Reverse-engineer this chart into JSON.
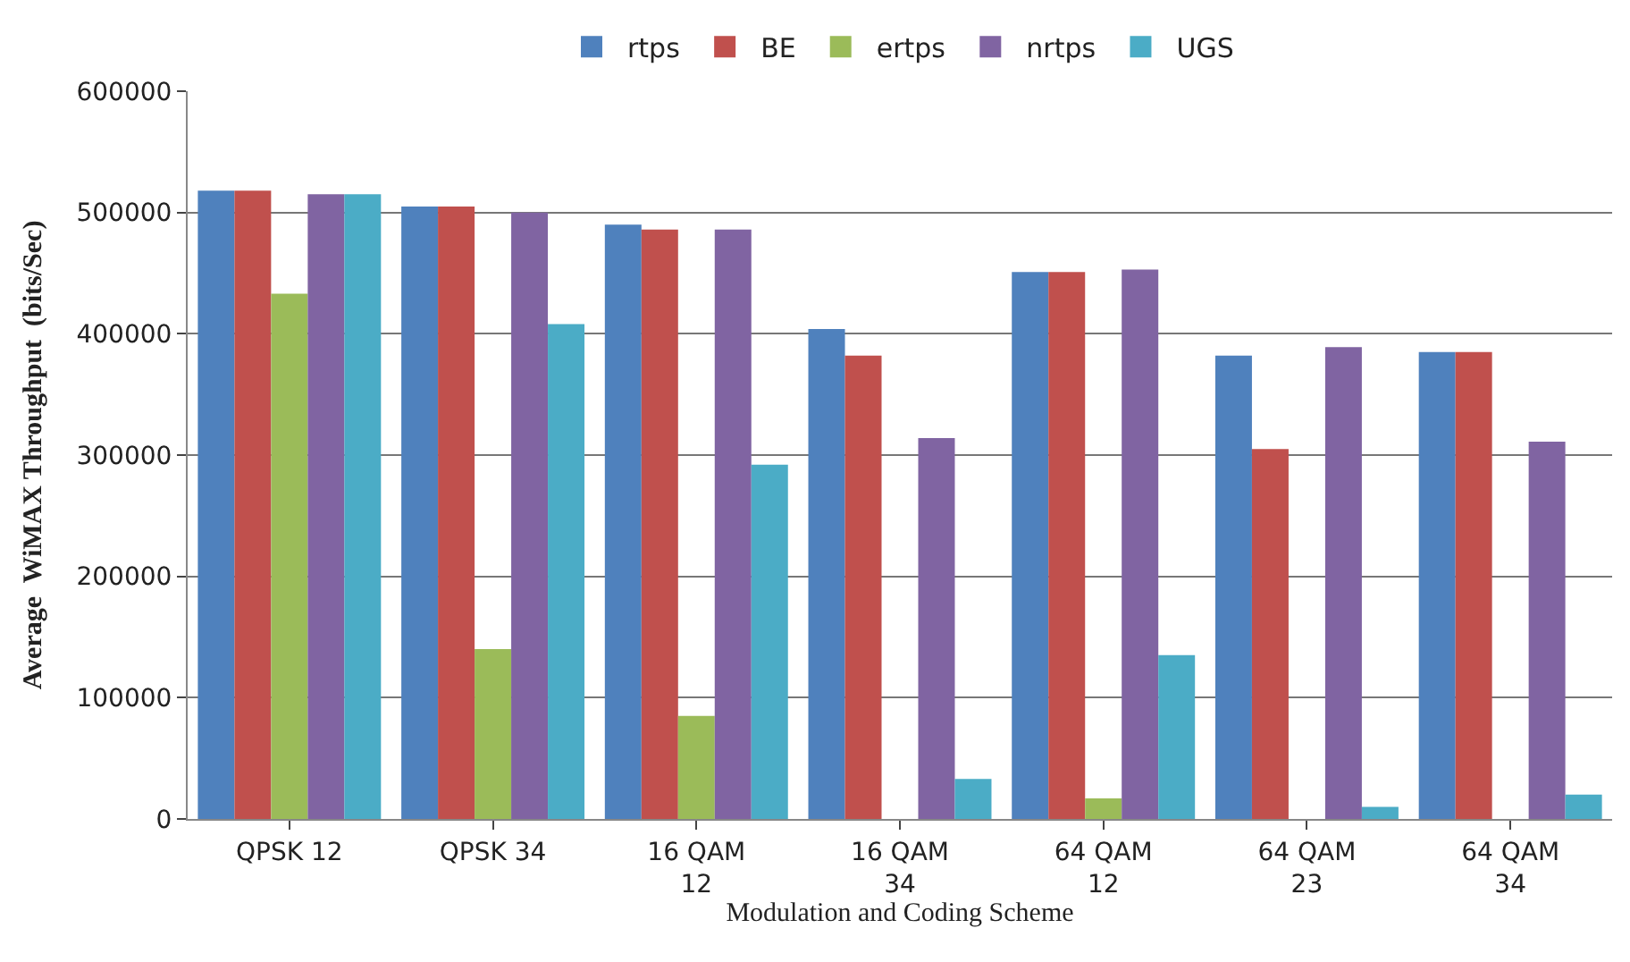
{
  "chart_data": {
    "type": "bar",
    "xlabel": "Modulation and Coding Scheme",
    "ylabel": "Average  WiMAX Throughput  (bits/Sec)",
    "categories": [
      "QPSK 12",
      "QPSK 34",
      "16 QAM\n12",
      "16 QAM\n34",
      "64 QAM\n12",
      "64 QAM\n23",
      "64 QAM\n34"
    ],
    "series": [
      {
        "name": "rtps",
        "color": "#4f81bd",
        "values": [
          518000,
          505000,
          490000,
          404000,
          451000,
          382000,
          385000
        ]
      },
      {
        "name": "BE",
        "color": "#c0504d",
        "values": [
          518000,
          505000,
          486000,
          382000,
          451000,
          305000,
          385000
        ]
      },
      {
        "name": "ertps",
        "color": "#9bbb59",
        "values": [
          433000,
          140000,
          85000,
          0,
          17000,
          0,
          0
        ]
      },
      {
        "name": "nrtps",
        "color": "#8064a2",
        "values": [
          515000,
          500000,
          486000,
          314000,
          453000,
          389000,
          311000
        ]
      },
      {
        "name": "UGS",
        "color": "#4bacc6",
        "values": [
          515000,
          408000,
          292000,
          33000,
          135000,
          10000,
          20000
        ]
      }
    ],
    "ylim": [
      0,
      600000
    ],
    "yticks": [
      0,
      100000,
      200000,
      300000,
      400000,
      500000,
      600000
    ],
    "grid": "y",
    "legend": "top"
  }
}
